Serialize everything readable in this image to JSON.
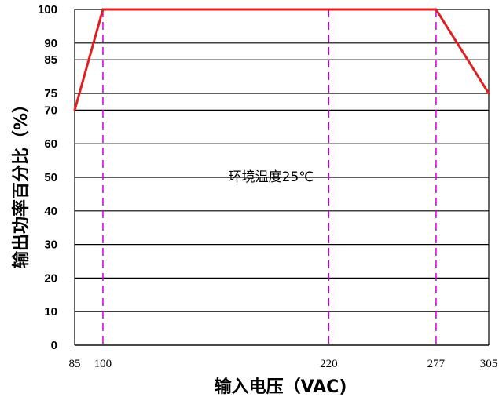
{
  "chart_data": {
    "type": "line",
    "xlabel": "输入电压（VAC)",
    "ylabel": "输出功率百分比（%）",
    "annotation": "环境温度25℃",
    "x_ticks": [
      85,
      100,
      220,
      277,
      305
    ],
    "x_tick_labels": [
      "85",
      "100",
      "220",
      "277",
      "305"
    ],
    "x_tick_colors": [
      "#000000",
      "#cc00cc",
      "#000000",
      "#cc00cc",
      "#000000"
    ],
    "y_ticks": [
      0,
      10,
      20,
      30,
      40,
      50,
      60,
      70,
      75,
      85,
      90,
      100
    ],
    "y_tick_labels": [
      "0",
      "10",
      "20",
      "30",
      "40",
      "50",
      "60",
      "70",
      "75",
      "85",
      "90",
      "100"
    ],
    "xlim": [
      85,
      305
    ],
    "ylim": [
      0,
      100
    ],
    "grid": "horizontal",
    "reference_lines_x": [
      100,
      220,
      277
    ],
    "series": [
      {
        "x": [
          85,
          100,
          277,
          305
        ],
        "y": [
          70,
          100,
          100,
          75
        ],
        "color": "#e02020"
      }
    ],
    "colors": {
      "line": "#e02020",
      "reference": "#cc00cc",
      "grid": "#000000"
    }
  }
}
